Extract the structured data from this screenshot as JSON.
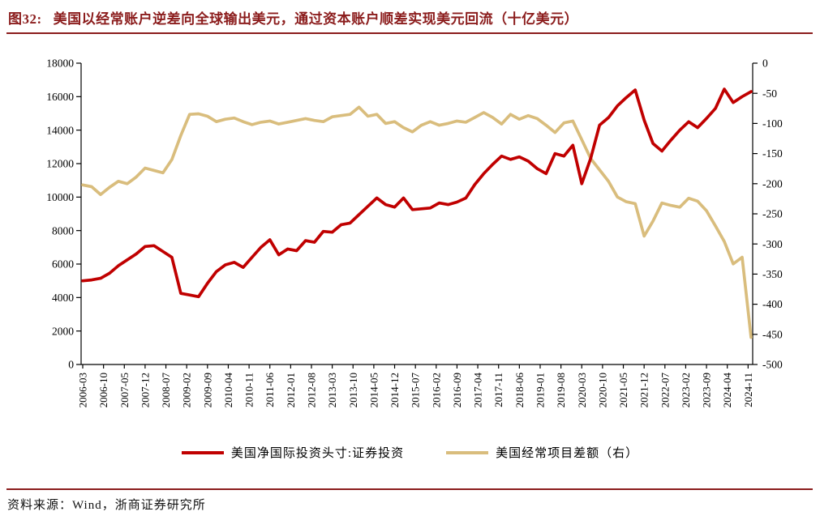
{
  "header": {
    "figure_label": "图32:",
    "title": "美国以经常账户逆差向全球输出美元，通过资本账户顺差实现美元回流（十亿美元）"
  },
  "source": "资料来源：Wind，浙商证券研究所",
  "colors": {
    "title_maroon": "#8B1C1C",
    "series_red": "#C00000",
    "series_tan": "#D9BD7D",
    "axis_black": "#000000"
  },
  "chart_data": {
    "type": "line",
    "grid": false,
    "legend_position": "bottom",
    "x_frequency": "quarterly",
    "x_period_start": "2006-03",
    "x_period_end": "2024-12",
    "x_tick_labels": [
      "2006-03",
      "2006-10",
      "2007-05",
      "2007-12",
      "2008-07",
      "2009-02",
      "2009-09",
      "2010-04",
      "2010-11",
      "2011-06",
      "2012-01",
      "2012-08",
      "2013-03",
      "2013-10",
      "2014-05",
      "2014-12",
      "2015-07",
      "2016-02",
      "2016-09",
      "2017-04",
      "2017-11",
      "2018-06",
      "2019-01",
      "2019-08",
      "2020-03",
      "2020-10",
      "2021-05",
      "2021-12",
      "2022-07",
      "2023-02",
      "2023-09",
      "2024-04",
      "2024-11"
    ],
    "left_axis": {
      "min": 0,
      "max": 18000,
      "step": 2000,
      "labels": [
        "0",
        "2000",
        "4000",
        "6000",
        "8000",
        "10000",
        "12000",
        "14000",
        "16000",
        "18000"
      ]
    },
    "right_axis": {
      "min": -500,
      "max": 0,
      "step": 50,
      "labels": [
        "0",
        "-50",
        "-100",
        "-150",
        "-200",
        "-250",
        "-300",
        "-350",
        "-400",
        "-450",
        "-500"
      ]
    },
    "series": [
      {
        "name": "美国净国际投资头寸:证券投资",
        "axis": "left",
        "color": "#C00000",
        "values": [
          5000,
          5050,
          5150,
          5450,
          5900,
          6250,
          6600,
          7050,
          7100,
          6750,
          6400,
          4250,
          4150,
          4050,
          4850,
          5550,
          5950,
          6100,
          5800,
          6400,
          7000,
          7450,
          6550,
          6900,
          6800,
          7400,
          7300,
          7950,
          7900,
          8350,
          8450,
          8950,
          9450,
          9950,
          9550,
          9400,
          9950,
          9250,
          9300,
          9350,
          9650,
          9550,
          9700,
          9950,
          10750,
          11400,
          11950,
          12450,
          12250,
          12400,
          12150,
          11700,
          11400,
          12600,
          12450,
          13100,
          10800,
          12300,
          14300,
          14750,
          15450,
          15950,
          16400,
          14600,
          13200,
          12750,
          13400,
          14000,
          14500,
          14150,
          14700,
          15300,
          16450,
          15650,
          16000,
          16300
        ]
      },
      {
        "name": "美国经常项目差额（右）",
        "axis": "right",
        "color": "#D9BD7D",
        "values": [
          -202,
          -205,
          -218,
          -206,
          -196,
          -200,
          -189,
          -174,
          -178,
          -182,
          -160,
          -120,
          -85,
          -84,
          -88,
          -97,
          -93,
          -91,
          -97,
          -102,
          -98,
          -96,
          -101,
          -98,
          -95,
          -92,
          -95,
          -97,
          -89,
          -87,
          -85,
          -73,
          -88,
          -85,
          -100,
          -97,
          -107,
          -114,
          -103,
          -97,
          -103,
          -100,
          -96,
          -98,
          -90,
          -82,
          -90,
          -101,
          -85,
          -93,
          -87,
          -92,
          -103,
          -115,
          -99,
          -96,
          -127,
          -158,
          -177,
          -196,
          -222,
          -230,
          -233,
          -287,
          -262,
          -232,
          -236,
          -239,
          -224,
          -229,
          -245,
          -270,
          -296,
          -333,
          -322,
          -455
        ]
      }
    ]
  }
}
